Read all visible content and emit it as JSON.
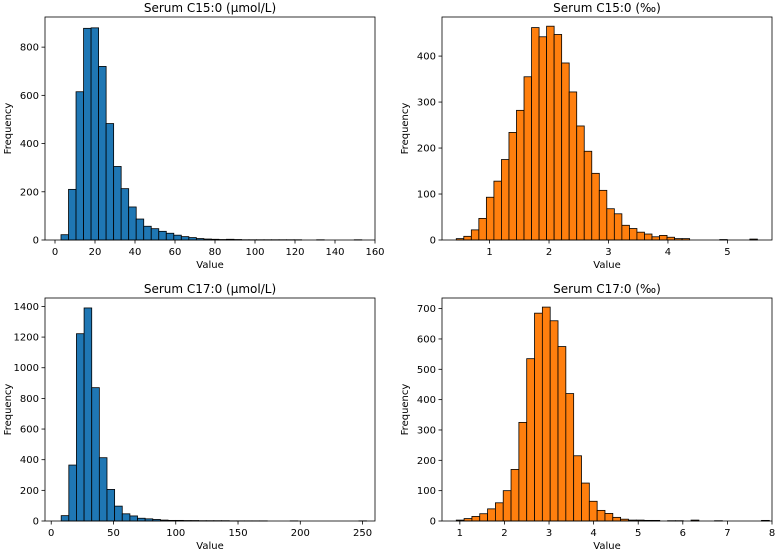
{
  "chart_data": [
    {
      "type": "bar",
      "title": "Serum C15:0 (μmol/L)",
      "xlabel": "Value",
      "ylabel": "Frequency",
      "color": "#1f77b4",
      "xlim": [
        -5.0,
        160.0
      ],
      "ylim": [
        0,
        925
      ],
      "bin_start": 3.0,
      "bin_width": 3.76,
      "values": [
        22,
        210,
        615,
        878,
        880,
        720,
        483,
        305,
        213,
        137,
        87,
        57,
        47,
        36,
        28,
        20,
        14,
        10,
        6,
        4,
        3,
        2,
        3,
        2,
        1,
        1,
        1,
        1,
        1,
        1,
        1,
        1,
        0,
        0,
        1,
        0,
        0,
        0,
        0,
        1
      ],
      "xticks": [
        0,
        20,
        40,
        60,
        80,
        100,
        120,
        140,
        160
      ],
      "yticks": [
        0,
        200,
        400,
        600,
        800
      ]
    },
    {
      "type": "bar",
      "title": "Serum C15:0 (‰)",
      "xlabel": "Value",
      "ylabel": "Frequency",
      "color": "#ff7f0e",
      "xlim": [
        0.2,
        5.75
      ],
      "ylim": [
        0,
        485
      ],
      "bin_start": 0.44,
      "bin_width": 0.1266,
      "values": [
        3,
        8,
        22,
        47,
        93,
        128,
        175,
        234,
        282,
        355,
        462,
        442,
        465,
        447,
        385,
        322,
        248,
        193,
        145,
        108,
        68,
        57,
        32,
        25,
        17,
        13,
        7,
        10,
        6,
        3,
        3,
        0,
        0,
        0,
        0,
        1,
        0,
        0,
        0,
        2
      ],
      "xticks": [
        1,
        2,
        3,
        4,
        5
      ],
      "yticks": [
        0,
        100,
        200,
        300,
        400
      ]
    },
    {
      "type": "bar",
      "title": "Serum C17:0 (μmol/L)",
      "xlabel": "Value",
      "ylabel": "Frequency",
      "color": "#1f77b4",
      "xlim": [
        -5.0,
        260.0
      ],
      "ylim": [
        0,
        1455
      ],
      "bin_start": 8.0,
      "bin_width": 6.13,
      "values": [
        35,
        365,
        1222,
        1390,
        870,
        413,
        206,
        97,
        47,
        33,
        18,
        14,
        10,
        6,
        4,
        4,
        3,
        3,
        2,
        2,
        2,
        2,
        1,
        1,
        1,
        1,
        1,
        0,
        0,
        0,
        1,
        0,
        0,
        0,
        0,
        0,
        0,
        0,
        0,
        1
      ],
      "xticks": [
        0,
        50,
        100,
        150,
        200,
        250
      ],
      "yticks": [
        0,
        200,
        400,
        600,
        800,
        1000,
        1200,
        1400
      ]
    },
    {
      "type": "bar",
      "title": "Serum C17:0 (‰)",
      "xlabel": "Value",
      "ylabel": "Frequency",
      "color": "#ff7f0e",
      "xlim": [
        0.6,
        8.0
      ],
      "ylim": [
        0,
        735
      ],
      "bin_start": 0.92,
      "bin_width": 0.1755,
      "values": [
        3,
        8,
        15,
        24,
        40,
        60,
        100,
        170,
        325,
        535,
        685,
        705,
        660,
        575,
        420,
        215,
        125,
        65,
        35,
        25,
        12,
        6,
        3,
        3,
        2,
        2,
        0,
        1,
        1,
        0,
        3,
        0,
        0,
        1,
        0,
        0,
        0,
        0,
        0,
        2
      ],
      "xticks": [
        1,
        2,
        3,
        4,
        5,
        6,
        7,
        8
      ],
      "yticks": [
        0,
        100,
        200,
        300,
        400,
        500,
        600,
        700
      ]
    }
  ]
}
